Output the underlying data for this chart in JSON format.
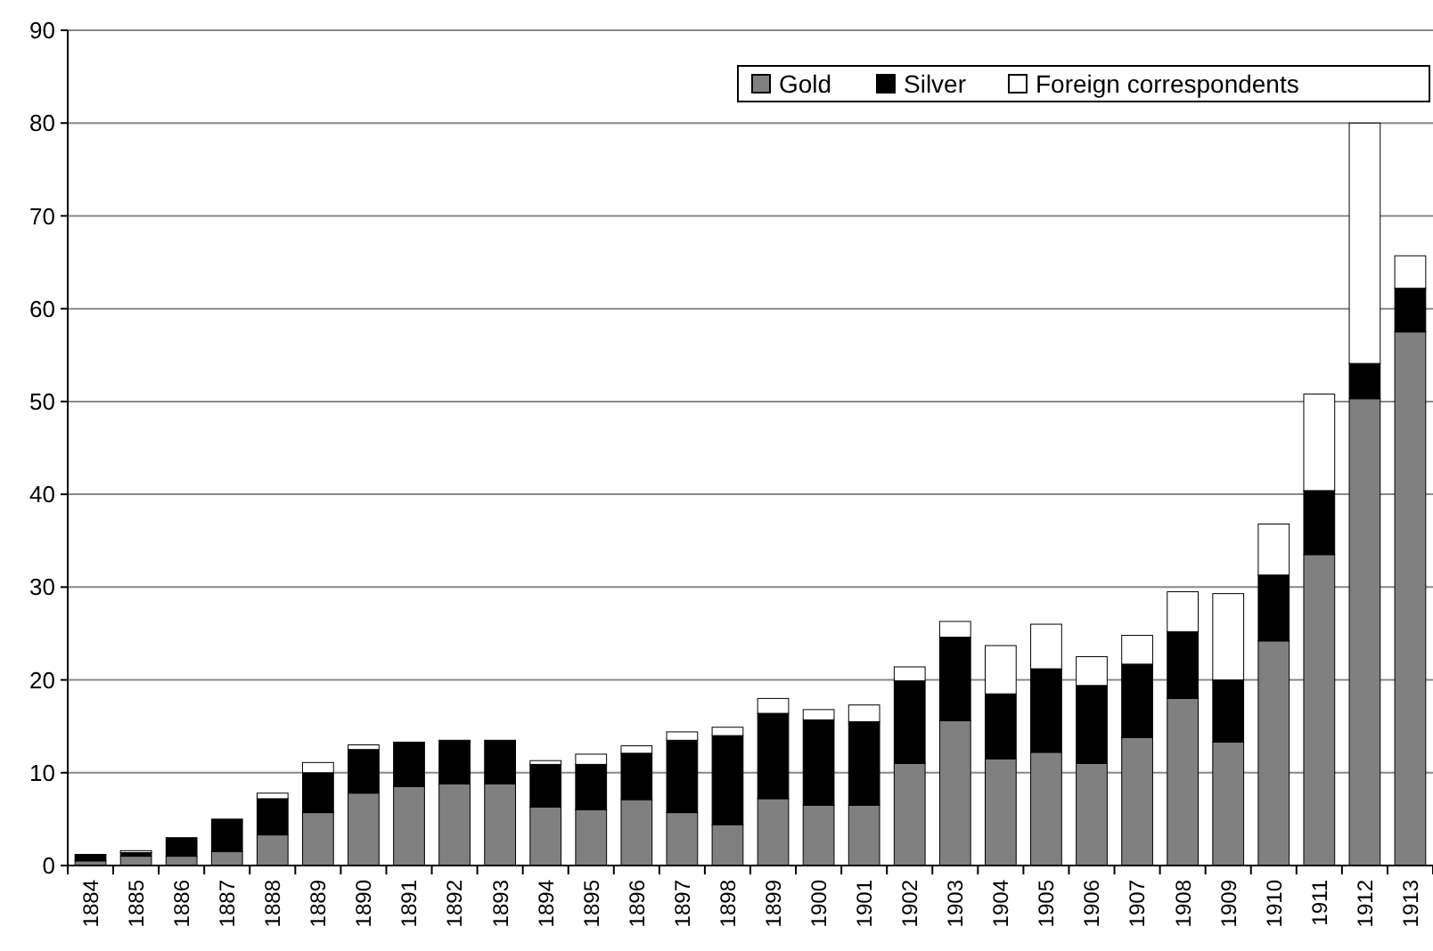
{
  "chart_data": {
    "type": "bar",
    "stacked": true,
    "categories": [
      "1884",
      "1885",
      "1886",
      "1887",
      "1888",
      "1889",
      "1890",
      "1891",
      "1892",
      "1893",
      "1894",
      "1895",
      "1896",
      "1897",
      "1898",
      "1899",
      "1900",
      "1901",
      "1902",
      "1903",
      "1904",
      "1905",
      "1906",
      "1907",
      "1908",
      "1909",
      "1910",
      "1911",
      "1912",
      "1913"
    ],
    "series": [
      {
        "name": "Gold",
        "color": "#808080",
        "values": [
          0.5,
          1.0,
          1.0,
          1.5,
          3.3,
          5.7,
          7.8,
          8.5,
          8.8,
          8.8,
          6.3,
          6.0,
          7.1,
          5.7,
          4.4,
          7.2,
          6.5,
          6.5,
          11.0,
          15.6,
          11.5,
          12.2,
          11.0,
          13.8,
          18.0,
          13.3,
          24.2,
          33.5,
          50.3,
          57.5
        ]
      },
      {
        "name": "Silver",
        "color": "#000000",
        "values": [
          0.7,
          0.4,
          2.0,
          3.5,
          3.9,
          4.3,
          4.7,
          4.8,
          4.7,
          4.7,
          4.6,
          4.9,
          5.0,
          7.8,
          9.6,
          9.2,
          9.2,
          9.0,
          8.9,
          9.0,
          7.0,
          9.0,
          8.4,
          7.9,
          7.2,
          6.7,
          7.1,
          6.9,
          3.8,
          4.7
        ]
      },
      {
        "name": "Foreign correspondents",
        "color": "#ffffff",
        "values": [
          0,
          0.2,
          0,
          0,
          0.6,
          1.1,
          0.5,
          0,
          0,
          0,
          0.4,
          1.1,
          0.8,
          0.9,
          0.9,
          1.6,
          1.1,
          1.8,
          1.5,
          1.7,
          5.2,
          4.8,
          3.1,
          3.1,
          4.3,
          9.3,
          5.5,
          10.4,
          25.9,
          3.5
        ]
      }
    ],
    "ylim": [
      0,
      90
    ],
    "yticks": [
      0,
      10,
      20,
      30,
      40,
      50,
      60,
      70,
      80,
      90
    ],
    "grid": "y",
    "legend": "top right"
  }
}
